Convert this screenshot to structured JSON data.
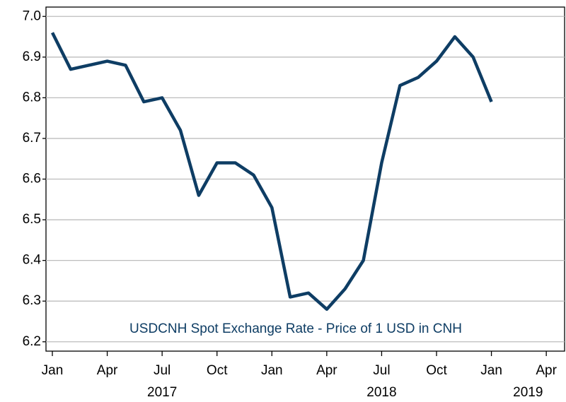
{
  "chart_data": {
    "type": "line",
    "x": [
      "2017-01",
      "2017-02",
      "2017-03",
      "2017-04",
      "2017-05",
      "2017-06",
      "2017-07",
      "2017-08",
      "2017-09",
      "2017-10",
      "2017-11",
      "2017-12",
      "2018-01",
      "2018-02",
      "2018-03",
      "2018-04",
      "2018-05",
      "2018-06",
      "2018-07",
      "2018-08",
      "2018-09",
      "2018-10",
      "2018-11",
      "2018-12",
      "2019-01"
    ],
    "series": [
      {
        "name": "USDCNH Spot Exchange Rate - Price of 1 USD in CNH",
        "color": "#0e3d64",
        "values": [
          6.96,
          6.87,
          6.88,
          6.89,
          6.88,
          6.79,
          6.8,
          6.72,
          6.56,
          6.64,
          6.64,
          6.61,
          6.53,
          6.31,
          6.32,
          6.28,
          6.33,
          6.4,
          6.64,
          6.83,
          6.85,
          6.89,
          6.95,
          6.9,
          6.79
        ]
      }
    ],
    "xlim": [
      "2017-01",
      "2019-05"
    ],
    "xticks": [
      {
        "value": "2017-01",
        "label": "Jan"
      },
      {
        "value": "2017-04",
        "label": "Apr"
      },
      {
        "value": "2017-07",
        "label": "Jul"
      },
      {
        "value": "2017-10",
        "label": "Oct"
      },
      {
        "value": "2018-01",
        "label": "Jan"
      },
      {
        "value": "2018-04",
        "label": "Apr"
      },
      {
        "value": "2018-07",
        "label": "Jul"
      },
      {
        "value": "2018-10",
        "label": "Oct"
      },
      {
        "value": "2019-01",
        "label": "Jan"
      },
      {
        "value": "2019-04",
        "label": "Apr"
      }
    ],
    "year_labels": [
      {
        "value": "2017-07",
        "label": "2017"
      },
      {
        "value": "2018-07",
        "label": "2018"
      },
      {
        "value": "2019-03",
        "label": "2019"
      }
    ],
    "ylim": [
      6.177,
      7.023
    ],
    "yticks": [
      6.2,
      6.3,
      6.4,
      6.5,
      6.6,
      6.7,
      6.8,
      6.9,
      {
        "value": 7,
        "label": "7.0"
      }
    ],
    "grid": true
  }
}
